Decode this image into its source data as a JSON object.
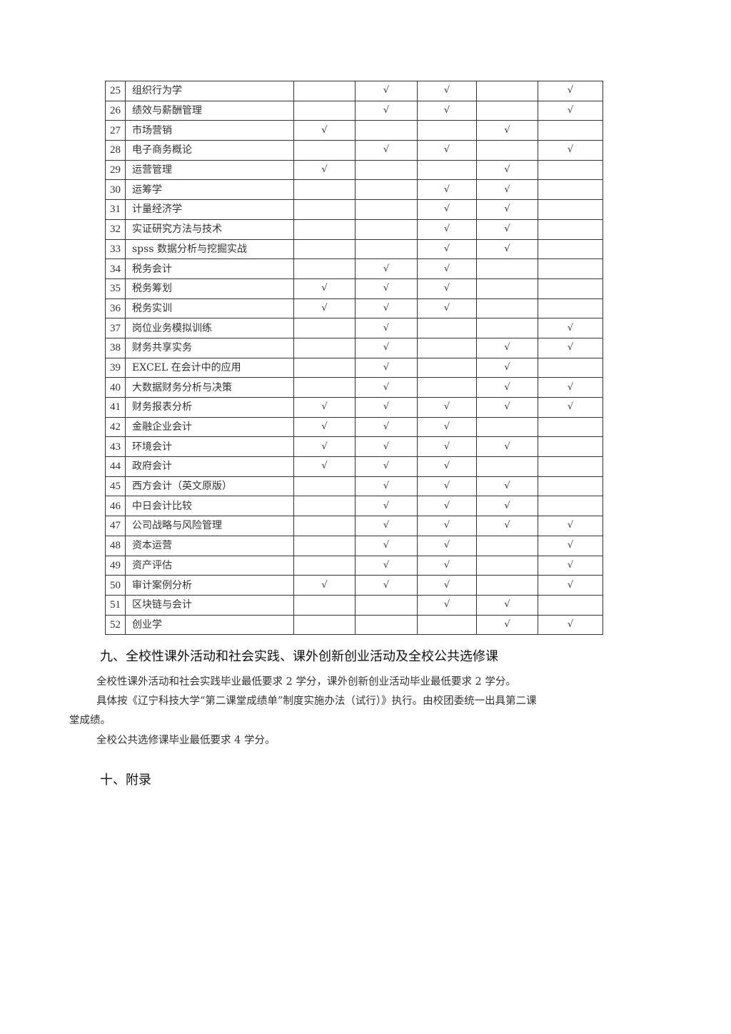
{
  "table": {
    "rows": [
      {
        "no": "25",
        "name": "组织行为学",
        "checks": [
          "",
          "√",
          "√",
          "",
          "√"
        ]
      },
      {
        "no": "26",
        "name": "绩效与薪酬管理",
        "checks": [
          "",
          "√",
          "√",
          "",
          "√"
        ]
      },
      {
        "no": "27",
        "name": "市场营销",
        "checks": [
          "√",
          "",
          "",
          "√",
          ""
        ]
      },
      {
        "no": "28",
        "name": "电子商务概论",
        "checks": [
          "",
          "√",
          "√",
          "",
          "√"
        ]
      },
      {
        "no": "29",
        "name": "运营管理",
        "checks": [
          "√",
          "",
          "",
          "√",
          ""
        ]
      },
      {
        "no": "30",
        "name": "运筹学",
        "checks": [
          "",
          "",
          "√",
          "√",
          ""
        ]
      },
      {
        "no": "31",
        "name": "计量经济学",
        "checks": [
          "",
          "",
          "√",
          "√",
          ""
        ]
      },
      {
        "no": "32",
        "name": "实证研究方法与技术",
        "checks": [
          "",
          "",
          "√",
          "√",
          ""
        ]
      },
      {
        "no": "33",
        "name": "spss 数据分析与挖掘实战",
        "checks": [
          "",
          "",
          "√",
          "√",
          ""
        ]
      },
      {
        "no": "34",
        "name": "税务会计",
        "checks": [
          "",
          "√",
          "√",
          "",
          ""
        ]
      },
      {
        "no": "35",
        "name": "税务筹划",
        "checks": [
          "√",
          "√",
          "√",
          "",
          ""
        ]
      },
      {
        "no": "36",
        "name": "税务实训",
        "checks": [
          "√",
          "√",
          "√",
          "",
          ""
        ]
      },
      {
        "no": "37",
        "name": "岗位业务模拟训练",
        "checks": [
          "",
          "√",
          "",
          "",
          "√"
        ]
      },
      {
        "no": "38",
        "name": "财务共享实务",
        "checks": [
          "",
          "√",
          "",
          "√",
          "√"
        ]
      },
      {
        "no": "39",
        "name": "EXCEL 在会计中的应用",
        "checks": [
          "",
          "√",
          "",
          "√",
          ""
        ]
      },
      {
        "no": "40",
        "name": "大数据财务分析与决策",
        "checks": [
          "",
          "√",
          "",
          "√",
          "√"
        ]
      },
      {
        "no": "41",
        "name": "财务报表分析",
        "checks": [
          "√",
          "√",
          "√",
          "√",
          "√"
        ]
      },
      {
        "no": "42",
        "name": "金融企业会计",
        "checks": [
          "√",
          "√",
          "√",
          "",
          ""
        ]
      },
      {
        "no": "43",
        "name": "环境会计",
        "checks": [
          "√",
          "√",
          "√",
          "√",
          ""
        ]
      },
      {
        "no": "44",
        "name": "政府会计",
        "checks": [
          "√",
          "√",
          "√",
          "",
          ""
        ]
      },
      {
        "no": "45",
        "name": "西方会计（英文原版）",
        "checks": [
          "",
          "√",
          "√",
          "√",
          ""
        ]
      },
      {
        "no": "46",
        "name": "中日会计比较",
        "checks": [
          "",
          "√",
          "√",
          "√",
          ""
        ]
      },
      {
        "no": "47",
        "name": "公司战略与风险管理",
        "checks": [
          "",
          "√",
          "√",
          "√",
          "√"
        ]
      },
      {
        "no": "48",
        "name": "资本运营",
        "checks": [
          "",
          "√",
          "√",
          "",
          "√"
        ]
      },
      {
        "no": "49",
        "name": "资产评估",
        "checks": [
          "",
          "√",
          "√",
          "",
          "√"
        ]
      },
      {
        "no": "50",
        "name": "审计案例分析",
        "checks": [
          "√",
          "√",
          "√",
          "",
          "√"
        ]
      },
      {
        "no": "51",
        "name": "区块链与会计",
        "checks": [
          "",
          "",
          "√",
          "√",
          ""
        ]
      },
      {
        "no": "52",
        "name": "创业学",
        "checks": [
          "",
          "",
          "",
          "√",
          "√"
        ]
      }
    ]
  },
  "section9": {
    "heading": "九、全校性课外活动和社会实践、课外创新创业活动及全校公共选修课",
    "p1": "全校性课外活动和社会实践毕业最低要求 2 学分，课外创新创业活动毕业最低要求 2 学分。",
    "p2a": "具体按《辽宁科技大学“第二课堂成绩单”制度实施办法（试行）》执行。由校团委统一出具第二课",
    "p2b": "堂成绩。",
    "p3": "全校公共选修课毕业最低要求 4 学分。"
  },
  "section10": {
    "heading": "十、附录"
  }
}
